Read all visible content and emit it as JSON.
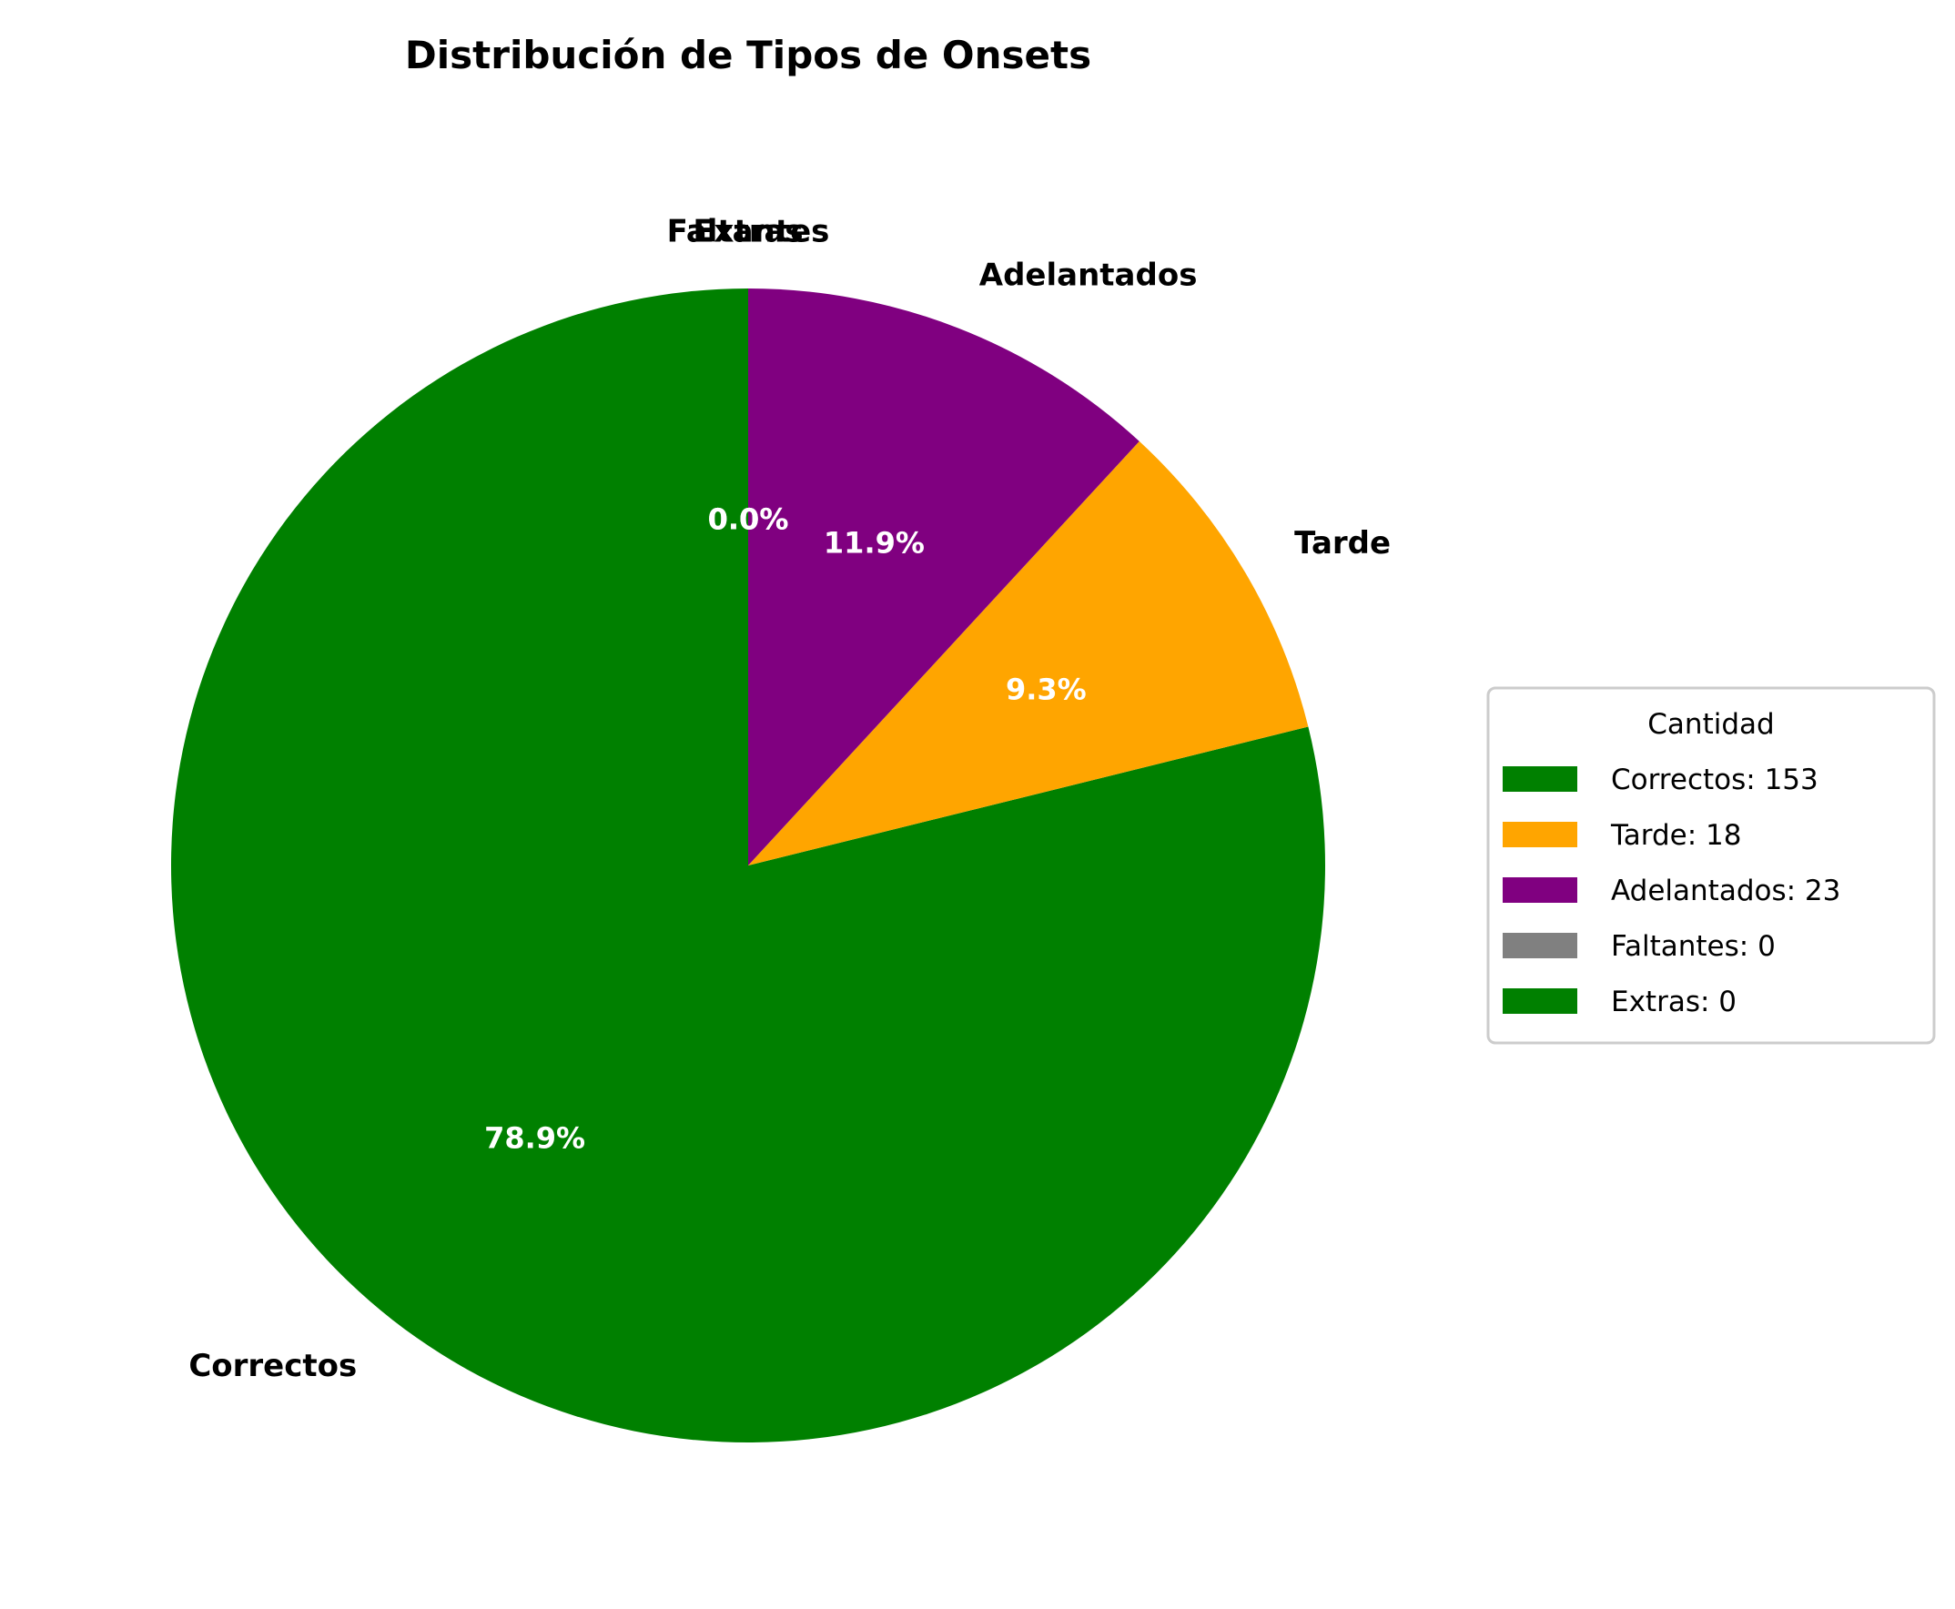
{
  "chart_data": {
    "type": "pie",
    "title": "Distribución de Tipos de Onsets",
    "start_angle_deg": 90,
    "direction": "clockwise",
    "slices": [
      {
        "label": "Correctos",
        "value": 153,
        "pct_label": "78.9%",
        "color": "#008000",
        "legend": "Correctos: 153"
      },
      {
        "label": "Tarde",
        "value": 18,
        "pct_label": "9.3%",
        "color": "#FFA500",
        "legend": "Tarde: 18"
      },
      {
        "label": "Adelantados",
        "value": 23,
        "pct_label": "11.9%",
        "color": "#800080",
        "legend": "Adelantados: 23"
      },
      {
        "label": "Faltantes",
        "value": 0,
        "pct_label": "0.0%",
        "color": "#808080",
        "legend": "Faltantes: 0"
      },
      {
        "label": "Extras",
        "value": 0,
        "pct_label": "0.0%",
        "color": "#008000",
        "legend": "Extras: 0"
      }
    ],
    "legend": {
      "title": "Cantidad",
      "placement": "right"
    }
  }
}
